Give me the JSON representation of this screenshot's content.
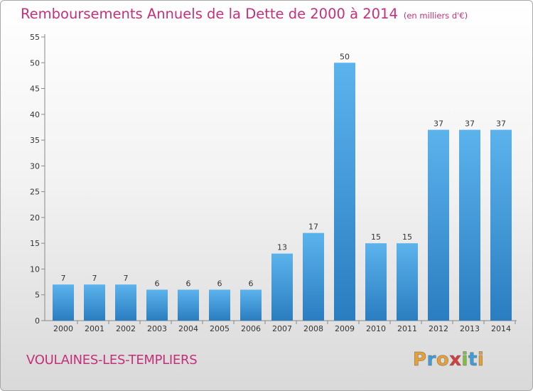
{
  "header": {
    "title": "Remboursements Annuels de la Dette de 2000 à 2014",
    "subtitle": "(en milliers d'€)"
  },
  "footer": {
    "commune": "VOULAINES-LES-TEMPLIERS",
    "brand": "Proxiti",
    "brand_letters": [
      {
        "char": "P",
        "color": "#e8a033"
      },
      {
        "char": "r",
        "color": "#3a9edb"
      },
      {
        "char": "o",
        "color": "#e8a033"
      },
      {
        "char": "x",
        "color": "#d93a3a"
      },
      {
        "char": "i",
        "color": "#7cbf3a"
      },
      {
        "char": "t",
        "color": "#3a9edb"
      },
      {
        "char": "i",
        "color": "#e8a033"
      }
    ]
  },
  "colors": {
    "title": "#c4307a",
    "bar_light": "#5cb3ec",
    "bar_dark": "#2a7dc0"
  },
  "chart_data": {
    "type": "bar",
    "title": "Remboursements Annuels de la Dette de 2000 à 2014",
    "subtitle": "(en milliers d'€)",
    "categories": [
      "2000",
      "2001",
      "2002",
      "2003",
      "2004",
      "2005",
      "2006",
      "2007",
      "2008",
      "2009",
      "2010",
      "2011",
      "2012",
      "2013",
      "2014"
    ],
    "values": [
      7,
      7,
      7,
      6,
      6,
      6,
      6,
      13,
      17,
      50,
      15,
      15,
      37,
      37,
      37
    ],
    "ylim": [
      0,
      55
    ],
    "yticks": [
      0,
      5,
      10,
      15,
      20,
      25,
      30,
      35,
      40,
      45,
      50,
      55
    ],
    "grid": false
  }
}
